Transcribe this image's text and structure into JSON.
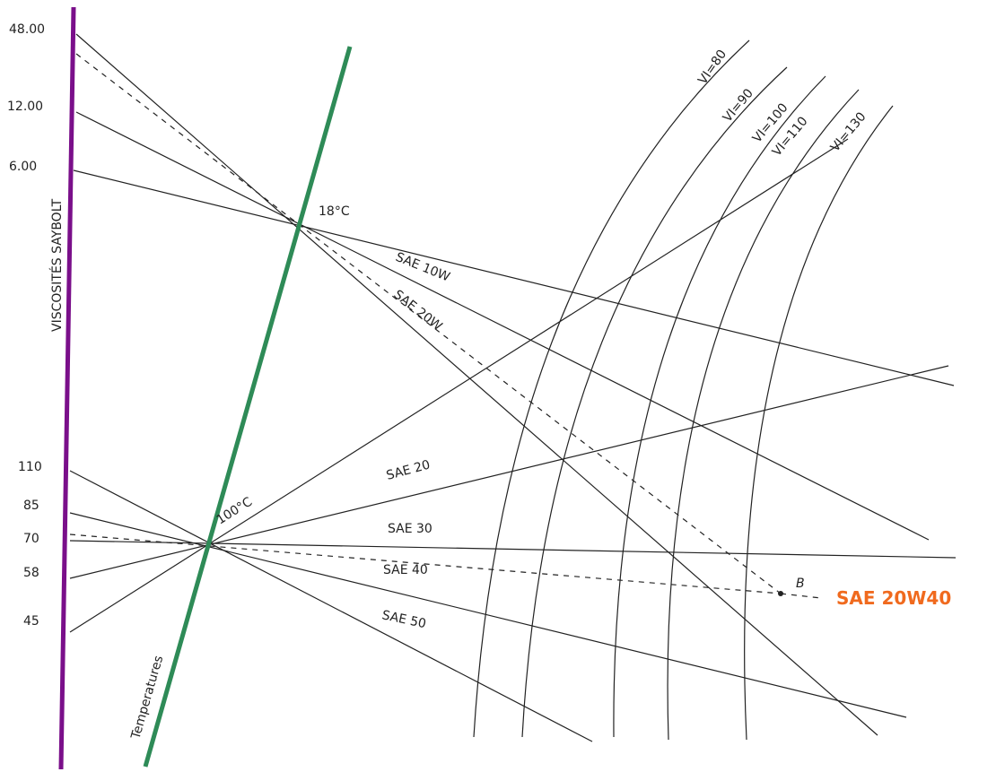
{
  "axis_title": "VISCOSITÉS SAYBOLT",
  "temperature_axis_title": "Temperatures",
  "viscosity_labels_top": [
    "48.00",
    "12.00",
    "6.00"
  ],
  "viscosity_labels_bottom": [
    "110",
    "85",
    "70",
    "58",
    "45"
  ],
  "temperature_points": [
    "18°C",
    "100°C"
  ],
  "sae_labels": [
    "SAE 10W",
    "SAE 20W",
    "SAE 20",
    "SAE 30",
    "SAE 40",
    "SAE 50"
  ],
  "vi_curves": [
    "VI=80",
    "VI=90",
    "VI=100",
    "VI=110",
    "VI=130"
  ],
  "point_label": "B",
  "result_label": "SAE 20W40"
}
